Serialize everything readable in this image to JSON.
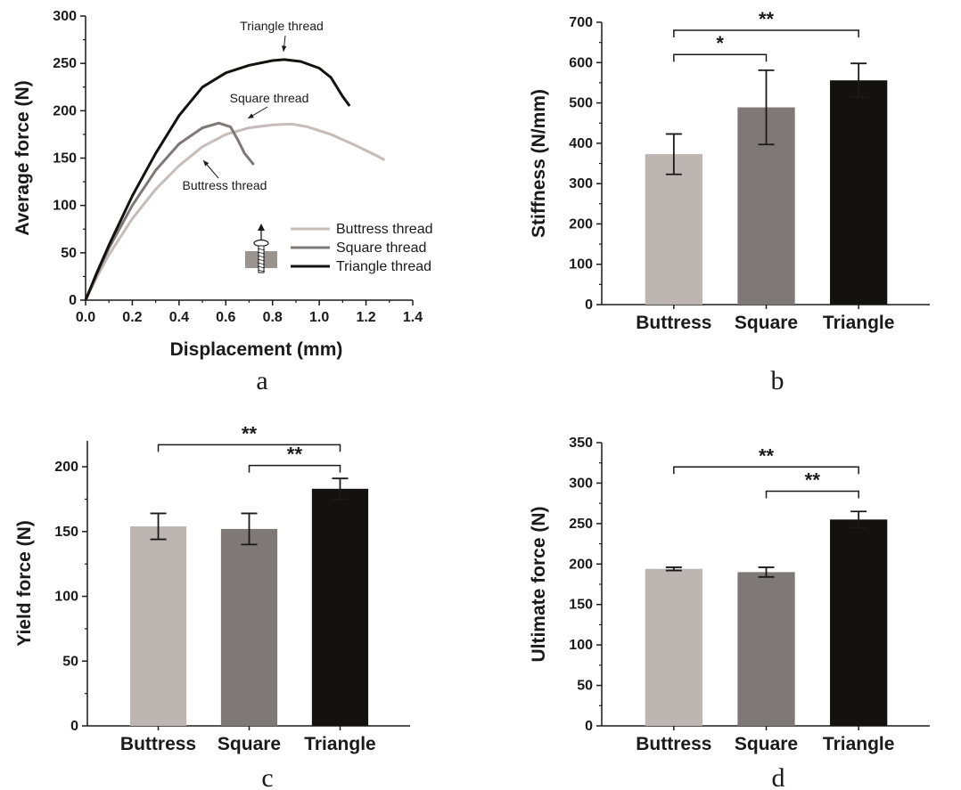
{
  "colors": {
    "buttress": "#bdb5b1",
    "square": "#7f7878",
    "triangle": "#141210",
    "axis": "#1a1a1a"
  },
  "chart_data": [
    {
      "panel": "a",
      "type": "line",
      "xlabel": "Displacement (mm)",
      "ylabel": "Average force (N)",
      "xlim": [
        0,
        1.4
      ],
      "ylim": [
        0,
        300
      ],
      "xticks": [
        "0.0",
        "0.2",
        "0.4",
        "0.6",
        "0.8",
        "1.0",
        "1.2",
        "1.4"
      ],
      "yticks": [
        "0",
        "50",
        "100",
        "150",
        "200",
        "250",
        "300"
      ],
      "grid": false,
      "legend_position": "bottom-right",
      "series": [
        {
          "name": "Buttress thread",
          "color": "#c4bdb9",
          "x": [
            0,
            0.05,
            0.1,
            0.2,
            0.3,
            0.4,
            0.5,
            0.6,
            0.7,
            0.8,
            0.88,
            0.95,
            1.05,
            1.15,
            1.25,
            1.28
          ],
          "y": [
            0,
            25,
            48,
            86,
            117,
            142,
            162,
            175,
            182,
            185,
            186,
            183,
            175,
            164,
            152,
            148
          ]
        },
        {
          "name": "Square thread",
          "color": "#7f7878",
          "x": [
            0,
            0.05,
            0.1,
            0.2,
            0.3,
            0.4,
            0.5,
            0.57,
            0.62,
            0.65,
            0.68,
            0.72
          ],
          "y": [
            0,
            28,
            55,
            100,
            137,
            165,
            182,
            187,
            183,
            170,
            155,
            143
          ]
        },
        {
          "name": "Triangle thread",
          "color": "#141210",
          "x": [
            0,
            0.05,
            0.1,
            0.2,
            0.3,
            0.4,
            0.5,
            0.6,
            0.7,
            0.8,
            0.85,
            0.92,
            1.0,
            1.05,
            1.1,
            1.13
          ],
          "y": [
            0,
            30,
            58,
            110,
            155,
            195,
            225,
            240,
            248,
            253,
            254,
            252,
            245,
            235,
            215,
            205
          ]
        }
      ],
      "annotations": [
        "Triangle thread",
        "Square thread",
        "Buttress thread"
      ]
    },
    {
      "panel": "b",
      "type": "bar",
      "ylabel": "Stiffness (N/mm)",
      "ylim": [
        0,
        700
      ],
      "yticks": [
        "0",
        "100",
        "200",
        "300",
        "400",
        "500",
        "600",
        "700"
      ],
      "categories": [
        "Buttress",
        "Square",
        "Triangle"
      ],
      "values": [
        373,
        489,
        556
      ],
      "errors": [
        50,
        92,
        42
      ],
      "significance": [
        {
          "from": 0,
          "to": 2,
          "label": "**"
        },
        {
          "from": 0,
          "to": 1,
          "label": "*"
        }
      ]
    },
    {
      "panel": "c",
      "type": "bar",
      "ylabel": "Yield force (N)",
      "ylim": [
        0,
        220
      ],
      "yticks": [
        "0",
        "50",
        "100",
        "150",
        "200"
      ],
      "categories": [
        "Buttress",
        "Square",
        "Triangle"
      ],
      "values": [
        154,
        152,
        183
      ],
      "errors": [
        10,
        12,
        8
      ],
      "significance": [
        {
          "from": 0,
          "to": 2,
          "label": "**"
        },
        {
          "from": 1,
          "to": 2,
          "label": "**"
        }
      ]
    },
    {
      "panel": "d",
      "type": "bar",
      "ylabel": "Ultimate force (N)",
      "ylim": [
        0,
        350
      ],
      "yticks": [
        "0",
        "50",
        "100",
        "150",
        "200",
        "250",
        "300",
        "350"
      ],
      "categories": [
        "Buttress",
        "Square",
        "Triangle"
      ],
      "values": [
        194,
        190,
        255
      ],
      "errors": [
        2,
        6,
        10
      ],
      "significance": [
        {
          "from": 0,
          "to": 2,
          "label": "**"
        },
        {
          "from": 1,
          "to": 2,
          "label": "**"
        }
      ]
    }
  ]
}
